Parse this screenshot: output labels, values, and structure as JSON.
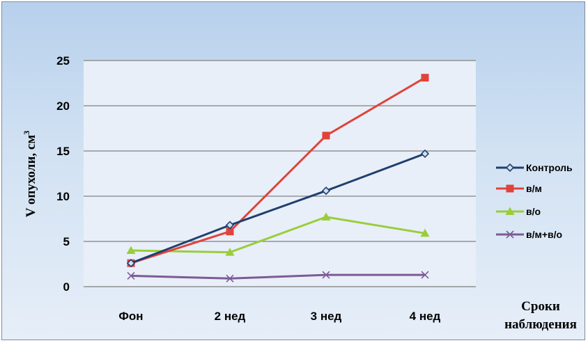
{
  "chart_data": {
    "type": "line",
    "categories": [
      "Фон",
      "2 нед",
      "3 нед",
      "4 нед"
    ],
    "ylabel": "V опухоли, см",
    "ylabel_superscript": "3",
    "xlabel_line1": "Сроки",
    "xlabel_line2": "наблюдения",
    "ylim": [
      0,
      25
    ],
    "yticks": [
      0,
      5,
      10,
      15,
      20,
      25
    ],
    "grid": true,
    "legend_position": "right",
    "series": [
      {
        "name": "Контроль",
        "values": [
          2.6,
          6.8,
          10.6,
          14.7
        ],
        "color": "#1f3f6e",
        "marker": "diamond"
      },
      {
        "name": "в/м",
        "values": [
          2.6,
          6.1,
          16.7,
          23.1
        ],
        "color": "#e0433b",
        "marker": "square"
      },
      {
        "name": "в/о",
        "values": [
          4.0,
          3.8,
          7.7,
          5.9
        ],
        "color": "#9acd3a",
        "marker": "triangle"
      },
      {
        "name": "в/м+в/о",
        "values": [
          1.2,
          0.9,
          1.3,
          1.3
        ],
        "color": "#7d5a96",
        "marker": "x"
      }
    ]
  }
}
